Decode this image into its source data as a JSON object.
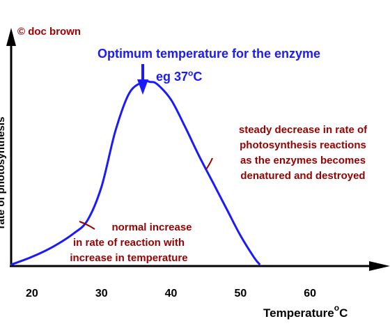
{
  "chart_data": {
    "type": "line",
    "title": "Optimum temperature for the enzyme",
    "peak_label_prefix": "eg 37",
    "peak_label_deg": "o",
    "peak_label_unit": "C",
    "xlabel_prefix": "Temperature",
    "xlabel_deg": "o",
    "xlabel_unit": "C",
    "ylabel": "rate of photosynthesis",
    "copyright": "© doc brown",
    "xlim": [
      17,
      70
    ],
    "ylim": [
      0,
      1.0
    ],
    "xticks": [
      "20",
      "30",
      "40",
      "50",
      "60"
    ],
    "series": [
      {
        "color": "#1a1aff",
        "x": [
          17,
          20,
          23,
          26,
          28,
          30,
          32,
          34,
          36,
          37,
          38,
          40,
          42,
          44,
          46,
          48,
          50,
          52,
          52.8
        ],
        "y": [
          0.0,
          0.035,
          0.08,
          0.14,
          0.2,
          0.35,
          0.6,
          0.77,
          0.82,
          0.82,
          0.81,
          0.74,
          0.62,
          0.49,
          0.37,
          0.25,
          0.13,
          0.03,
          0.0
        ]
      }
    ],
    "annotations": {
      "increase": [
        "normal increase",
        "in rate of reaction with",
        "increase in temperature"
      ],
      "decrease": [
        "steady decrease in rate of",
        "photosynthesis reactions",
        "as the enzymes becomes",
        "denatured and destroyed"
      ]
    },
    "colors": {
      "curve": "#1a1aff",
      "annotation": "#990000",
      "axis": "#000000",
      "title": "#1a1aff"
    }
  }
}
